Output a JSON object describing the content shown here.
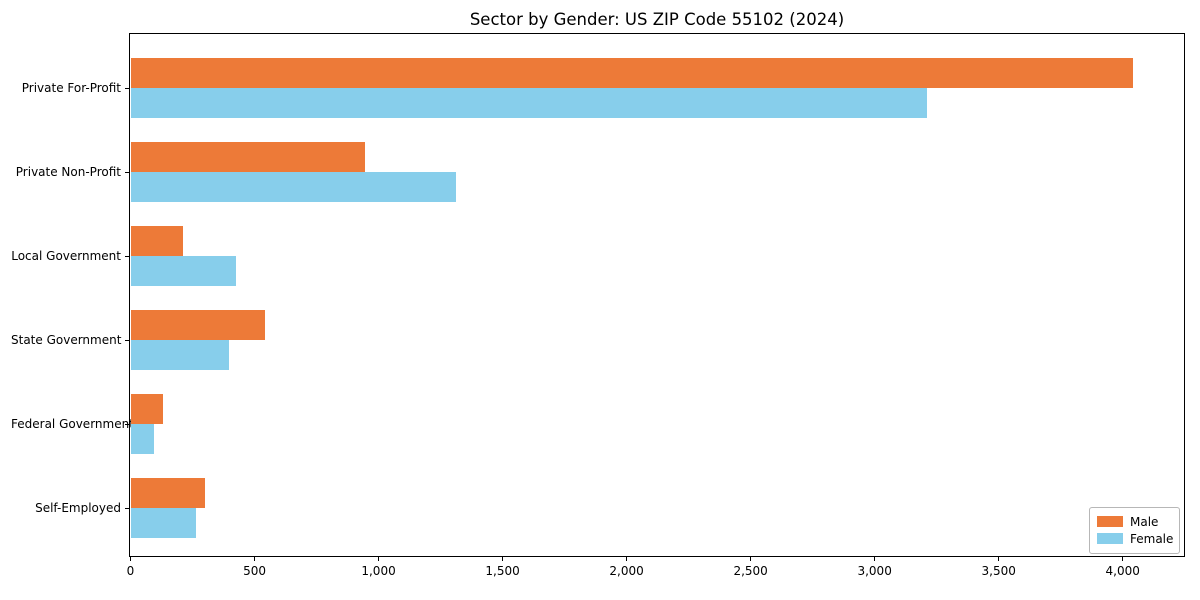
{
  "title": "Sector by Gender: US ZIP Code 55102 (2024)",
  "colors": {
    "male": "#ED7A38",
    "female": "#87CEEB",
    "axis": "#000000",
    "legend_border": "#b7b7b7",
    "background": "#ffffff"
  },
  "legend": {
    "position": "lower right",
    "items": [
      {
        "label": "Male"
      },
      {
        "label": "Female"
      }
    ]
  },
  "chart_data": {
    "type": "bar",
    "orientation": "horizontal",
    "title": "Sector by Gender: US ZIP Code 55102 (2024)",
    "xlabel": "",
    "ylabel": "",
    "categories": [
      "Private For-Profit",
      "Private Non-Profit",
      "Local Government",
      "State Government",
      "Federal Government",
      "Self-Employed"
    ],
    "series": [
      {
        "name": "Male",
        "color": "#ED7A38",
        "values": [
          4040,
          945,
          210,
          540,
          130,
          300
        ]
      },
      {
        "name": "Female",
        "color": "#87CEEB",
        "values": [
          3210,
          1310,
          425,
          395,
          95,
          265
        ]
      }
    ],
    "xlim": [
      0,
      4245
    ],
    "xticks": [
      0,
      500,
      1000,
      1500,
      2000,
      2500,
      3000,
      3500,
      4000
    ],
    "xtick_labels": [
      "0",
      "500",
      "1,000",
      "1,500",
      "2,000",
      "2,500",
      "3,000",
      "3,500",
      "4,000"
    ],
    "grid": false,
    "legend_position": "lower right"
  }
}
